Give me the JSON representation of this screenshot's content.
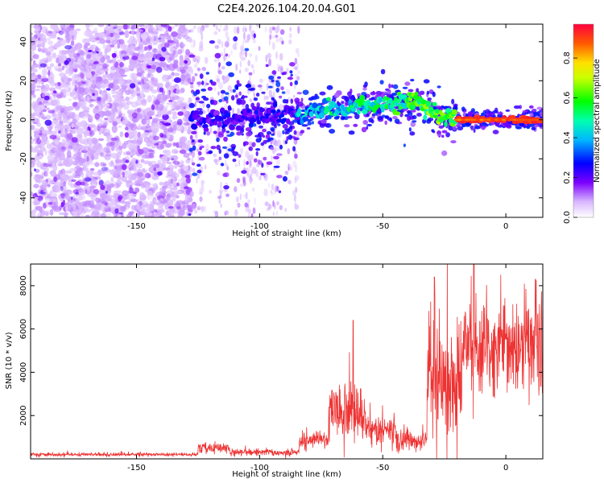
{
  "title": "C2E4.2026.104.20.04.G01",
  "chart_data": [
    {
      "type": "heatmap",
      "xlabel": "Height of straight line (km)",
      "ylabel": "Frequency (Hz)",
      "xlim": [
        -193,
        15
      ],
      "ylim": [
        -50,
        49
      ],
      "xticks": [
        -150,
        -100,
        -50,
        0
      ],
      "yticks": [
        -40,
        -20,
        0,
        20,
        40
      ],
      "colorbar": {
        "label": "Normalized spectral amplitude",
        "range": [
          0.0,
          0.97
        ],
        "ticks": [
          0.0,
          0.2,
          0.4,
          0.6,
          0.8
        ],
        "colormap": "rainbow (white-violet-blue-cyan-green-yellow-red)"
      },
      "features": [
        {
          "region": "broadband noise",
          "x_range": [
            -193,
            -128
          ],
          "freq_range": [
            -50,
            49
          ],
          "amplitude": 0.1
        },
        {
          "region": "noise fading",
          "x_range": [
            -128,
            -84
          ],
          "freq_range": [
            -50,
            49
          ],
          "amplitude": 0.05
        },
        {
          "region": "signal trace",
          "x_range": [
            -128,
            15
          ],
          "center_freq_start": 0,
          "center_freq_peak": 10,
          "peak_x": -37,
          "center_freq_end": 0,
          "amplitude_peak": 0.97,
          "peak_amplitude_x_range": [
            -20,
            15
          ]
        }
      ]
    },
    {
      "type": "line",
      "xlabel": "Height of straight line (km)",
      "ylabel": "SNR (10 * v/v)",
      "xlim": [
        -193,
        15
      ],
      "ylim": [
        0,
        9000
      ],
      "xticks": [
        -150,
        -100,
        -50,
        0
      ],
      "yticks": [
        2000,
        4000,
        6000,
        8000
      ],
      "color": "#ee3333",
      "segments": [
        {
          "x_range": [
            -193,
            -125
          ],
          "snr_level": 200,
          "noise": 80
        },
        {
          "x_range": [
            -125,
            -112
          ],
          "snr_level": 500,
          "noise": 200
        },
        {
          "x_range": [
            -112,
            -84
          ],
          "snr_level": 300,
          "noise": 150
        },
        {
          "x_range": [
            -84,
            -72
          ],
          "snr_level": 900,
          "noise": 400
        },
        {
          "x_range": [
            -72,
            -57
          ],
          "snr_level": 2200,
          "noise": 1200
        },
        {
          "x_range": [
            -57,
            -45
          ],
          "snr_level": 1300,
          "noise": 700
        },
        {
          "x_range": [
            -45,
            -32
          ],
          "snr_level": 800,
          "noise": 500
        },
        {
          "x_range": [
            -32,
            -18
          ],
          "snr_level": 3500,
          "noise": 2500
        },
        {
          "x_range": [
            -18,
            15
          ],
          "snr_level": 5200,
          "noise": 2000
        }
      ],
      "peaks": [
        {
          "x": -62,
          "y": 6400
        },
        {
          "x": -29,
          "y": 8400
        },
        {
          "x": -13,
          "y": 9000
        },
        {
          "x": 12,
          "y": 8300
        }
      ]
    }
  ]
}
